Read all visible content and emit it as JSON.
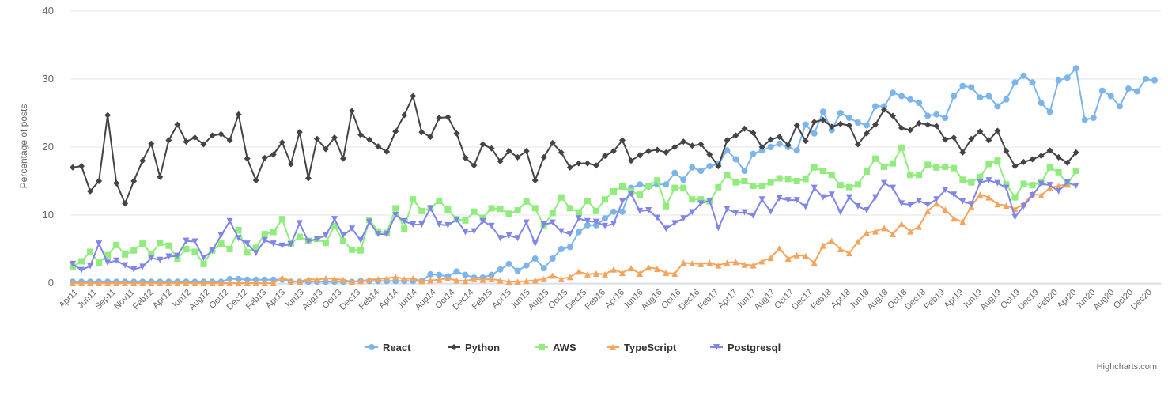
{
  "chart_data": {
    "type": "line",
    "title": "",
    "xlabel": "",
    "ylabel": "Percentage of posts",
    "ylim": [
      0,
      40
    ],
    "yticks": [
      "0",
      "10",
      "20",
      "30",
      "40"
    ],
    "grid": "horizontal",
    "legend": "bottom-center",
    "x_tick_labels": [
      "Apr11",
      "Jun11",
      "Sep11",
      "Nov11",
      "Feb12",
      "Apr12",
      "Jun12",
      "Aug12",
      "Oct12",
      "Dec12",
      "Feb13",
      "Apr13",
      "Jun13",
      "Aug13",
      "Oct13",
      "Dec13",
      "Feb14",
      "Apr14",
      "Jun14",
      "Aug14",
      "Oct14",
      "Dec14",
      "Feb15",
      "Apr15",
      "Jun15",
      "Aug15",
      "Oct15",
      "Dec15",
      "Feb16",
      "Apr16",
      "Jun16",
      "Aug16",
      "Oct16",
      "Dec16",
      "Feb17",
      "Apr17",
      "Jun17",
      "Aug17",
      "Oct17",
      "Dec17",
      "Feb18",
      "Apr18",
      "Jun18",
      "Aug18",
      "Oct18",
      "Dec18",
      "Feb19",
      "Apr19",
      "Jun19",
      "Aug19",
      "Oct19",
      "Dec19",
      "Feb20",
      "Apr20",
      "Jun20",
      "Aug20",
      "Oct20",
      "Dec20"
    ],
    "series": [
      {
        "name": "React",
        "color": "#7cb5ec",
        "marker": "circle",
        "values": [
          0.2,
          0.2,
          0.2,
          0.2,
          0.2,
          0.2,
          0.2,
          0.2,
          0.2,
          0.2,
          0.2,
          0.2,
          0.2,
          0.2,
          0.2,
          0.2,
          0.2,
          0.2,
          0.6,
          0.6,
          0.5,
          0.5,
          0.5,
          0.5,
          0.5,
          0.2,
          0.2,
          0.2,
          0.2,
          0.2,
          0.2,
          0.2,
          0.2,
          0.3,
          0.3,
          0.3,
          0.3,
          0.3,
          0.3,
          0.3,
          0.3,
          1.3,
          1.2,
          1.0,
          1.7,
          1.2,
          0.8,
          0.8,
          1.2,
          2.0,
          2.8,
          1.8,
          2.6,
          3.6,
          2.2,
          3.6,
          5.0,
          5.3,
          7.5,
          8.5,
          8.5,
          9.5,
          10.5,
          10.5,
          14.0,
          14.5,
          14.2,
          14.5,
          14.5,
          16.2,
          15.2,
          17.0,
          16.5,
          17.2,
          17.5,
          19.5,
          18.2,
          16.5,
          19.0,
          19.5,
          20.0,
          20.5,
          20.0,
          19.5,
          23.3,
          22.0,
          25.2,
          22.5,
          25.0,
          24.3,
          23.6,
          23.2,
          26.0,
          26.0,
          28.0,
          27.5,
          27.0,
          26.5,
          24.6,
          24.8,
          24.3,
          27.5,
          29.0,
          28.8,
          27.3,
          27.5,
          26.0,
          27.0,
          29.5,
          30.5,
          29.5,
          26.5,
          25.2,
          29.8,
          30.2,
          31.6,
          24.0,
          24.3,
          28.3,
          27.5,
          26.0,
          28.6,
          28.2,
          30.0,
          29.8
        ]
      },
      {
        "name": "Python",
        "color": "#434348",
        "marker": "diamond",
        "values": [
          17.0,
          17.2,
          13.5,
          15.0,
          24.7,
          14.7,
          11.7,
          15.0,
          18.0,
          20.5,
          15.6,
          21.0,
          23.3,
          20.8,
          21.4,
          20.4,
          21.7,
          21.9,
          21.0,
          24.8,
          18.3,
          15.1,
          18.4,
          18.9,
          20.7,
          17.5,
          22.2,
          15.4,
          21.2,
          19.7,
          21.4,
          18.3,
          25.3,
          21.8,
          21.1,
          20.1,
          19.3,
          22.3,
          24.7,
          27.5,
          22.2,
          21.5,
          24.3,
          24.4,
          22.0,
          18.4,
          17.3,
          20.4,
          19.8,
          17.9,
          19.4,
          18.5,
          19.4,
          15.1,
          18.5,
          20.6,
          19.2,
          17.0,
          17.6,
          17.6,
          17.3,
          18.7,
          19.4,
          21.0,
          18.0,
          18.8,
          19.4,
          19.6,
          19.2,
          20.0,
          20.8,
          20.2,
          20.4,
          18.9,
          17.2,
          21.0,
          21.7,
          22.7,
          22.1,
          20.0,
          21.1,
          21.5,
          20.3,
          23.2,
          20.9,
          23.7,
          24.0,
          23.0,
          23.4,
          23.2,
          20.4,
          22.0,
          23.3,
          25.5,
          24.6,
          22.8,
          22.5,
          23.5,
          23.3,
          23.1,
          21.1,
          21.4,
          19.2,
          21.2,
          22.3,
          21.0,
          22.4,
          19.4,
          17.2,
          17.8,
          18.2,
          18.7,
          19.5,
          18.5,
          17.7,
          19.2
        ]
      },
      {
        "name": "AWS",
        "color": "#90ed7d",
        "marker": "square",
        "values": [
          2.4,
          3.2,
          4.6,
          3.0,
          4.1,
          5.6,
          4.2,
          4.8,
          5.8,
          4.3,
          5.9,
          5.5,
          3.6,
          5.0,
          4.6,
          2.8,
          4.8,
          5.8,
          5.0,
          7.8,
          4.5,
          5.2,
          7.2,
          7.5,
          9.4,
          5.8,
          6.8,
          6.2,
          6.5,
          5.9,
          8.4,
          6.2,
          4.9,
          4.8,
          9.3,
          7.6,
          7.4,
          11.0,
          8.0,
          12.3,
          10.6,
          11.0,
          12.1,
          10.8,
          9.4,
          9.2,
          10.5,
          9.6,
          11.0,
          10.9,
          10.2,
          10.7,
          12.0,
          11.0,
          8.5,
          10.3,
          12.6,
          11.0,
          10.4,
          12.1,
          10.6,
          12.3,
          13.5,
          14.2,
          13.5,
          13.0,
          14.3,
          15.1,
          11.3,
          14.0,
          14.0,
          12.3,
          12.3,
          12.0,
          14.1,
          15.9,
          14.8,
          15.0,
          14.3,
          14.3,
          14.8,
          15.4,
          15.3,
          15.0,
          15.3,
          17.0,
          16.5,
          15.9,
          14.4,
          14.1,
          14.5,
          16.4,
          18.3,
          17.1,
          17.6,
          19.9,
          15.9,
          15.9,
          17.4,
          17.0,
          17.1,
          16.9,
          15.2,
          14.8,
          15.6,
          17.5,
          18.0,
          14.5,
          12.6,
          14.6,
          14.4,
          14.8,
          17.0,
          16.3,
          14.5,
          16.5
        ]
      },
      {
        "name": "TypeScript",
        "color": "#f7a35c",
        "marker": "triangle",
        "values": [
          0,
          0,
          0,
          0,
          0,
          0,
          0,
          0,
          0,
          0,
          0,
          0,
          0,
          0,
          0,
          0,
          0,
          0,
          0,
          0,
          0,
          0,
          0,
          0,
          0.8,
          0.3,
          0.2,
          0.6,
          0.5,
          0.7,
          0.6,
          0.5,
          0.2,
          0.3,
          0.5,
          0.6,
          0.7,
          0.9,
          0.6,
          0.7,
          0.3,
          0.4,
          0.5,
          0.7,
          0.4,
          0.3,
          0.6,
          0.5,
          0.6,
          0.4,
          0.2,
          0.2,
          0.3,
          0.4,
          0.6,
          1.1,
          0.6,
          0.9,
          1.7,
          1.3,
          1.4,
          1.3,
          2.0,
          1.5,
          2.2,
          1.4,
          2.3,
          2.1,
          1.5,
          1.4,
          3.0,
          2.9,
          2.8,
          3.0,
          2.6,
          3.0,
          3.1,
          2.7,
          2.6,
          3.2,
          3.7,
          5.1,
          3.6,
          4.1,
          4.0,
          3.0,
          5.5,
          6.2,
          5.0,
          4.4,
          6.1,
          7.4,
          7.6,
          8.1,
          7.2,
          8.7,
          7.6,
          8.3,
          10.6,
          11.7,
          10.8,
          9.5,
          9.0,
          11.3,
          13.0,
          12.6,
          11.6,
          11.4,
          10.9,
          11.6,
          13.1,
          12.9,
          14.0,
          14.3,
          14.5
        ]
      },
      {
        "name": "Postgresql",
        "color": "#8085e9",
        "marker": "triangle-down",
        "values": [
          2.8,
          1.9,
          2.5,
          5.8,
          3.0,
          3.3,
          2.6,
          2.0,
          2.4,
          3.7,
          3.4,
          3.9,
          4.0,
          6.2,
          6.1,
          3.7,
          4.8,
          7.0,
          9.1,
          6.6,
          5.8,
          4.4,
          6.3,
          5.8,
          5.5,
          5.7,
          8.8,
          6.1,
          6.5,
          7.0,
          9.4,
          7.0,
          8.0,
          6.3,
          9.0,
          7.2,
          7.2,
          10.0,
          9.1,
          8.6,
          8.6,
          11.0,
          8.6,
          8.5,
          9.3,
          7.5,
          7.6,
          9.1,
          8.4,
          6.6,
          7.0,
          6.6,
          8.9,
          5.8,
          8.6,
          8.9,
          7.6,
          7.2,
          9.5,
          9.1,
          9.0,
          8.4,
          8.7,
          12.0,
          13.1,
          10.6,
          10.7,
          9.6,
          8.0,
          8.8,
          9.5,
          10.4,
          11.7,
          12.1,
          8.1,
          10.9,
          10.3,
          10.4,
          9.9,
          12.3,
          10.5,
          12.5,
          12.2,
          12.2,
          11.2,
          14.0,
          12.6,
          13.0,
          10.4,
          12.6,
          11.3,
          10.7,
          12.6,
          14.7,
          14.0,
          11.7,
          11.5,
          12.1,
          11.5,
          12.3,
          13.7,
          13.0,
          12.0,
          11.6,
          14.8,
          15.1,
          14.7,
          14.0,
          9.7,
          11.3,
          12.9,
          14.6,
          14.4,
          13.5,
          14.8,
          14.3
        ]
      }
    ]
  },
  "credit": "Highcharts.com"
}
